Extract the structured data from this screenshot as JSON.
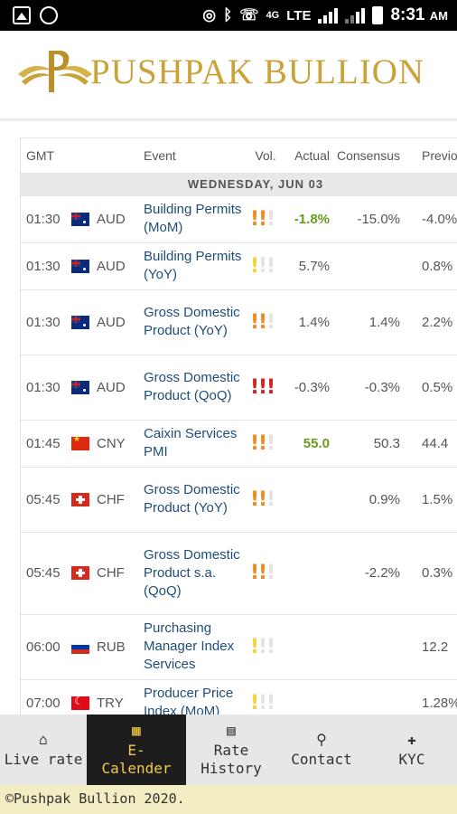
{
  "status": {
    "network": "4G",
    "lte": "LTE",
    "time": "8:31",
    "ampm": "AM"
  },
  "header": {
    "brand": "PUSHPAK BULLION"
  },
  "table": {
    "columns": {
      "gmt": "GMT",
      "event": "Event",
      "vol": "Vol.",
      "actual": "Actual",
      "consensus": "Consensus",
      "previous": "Previous"
    },
    "day": "WEDNESDAY, JUN 03",
    "rows": [
      {
        "time": "01:30",
        "currency": "AUD",
        "event": "Building Permits (MoM)",
        "actual": "-1.8%",
        "consensus": "-15.0%",
        "previous": "-4.0%"
      },
      {
        "time": "01:30",
        "currency": "AUD",
        "event": "Building Permits (YoY)",
        "actual": "5.7%",
        "consensus": "",
        "previous": "0.8%"
      },
      {
        "time": "01:30",
        "currency": "AUD",
        "event": "Gross Domestic Product (YoY)",
        "actual": "1.4%",
        "consensus": "1.4%",
        "previous": "2.2%"
      },
      {
        "time": "01:30",
        "currency": "AUD",
        "event": "Gross Domestic Product (QoQ)",
        "actual": "-0.3%",
        "consensus": "-0.3%",
        "previous": "0.5%"
      },
      {
        "time": "01:45",
        "currency": "CNY",
        "event": "Caixin Services PMI",
        "actual": "55.0",
        "consensus": "50.3",
        "previous": "44.4"
      },
      {
        "time": "05:45",
        "currency": "CHF",
        "event": "Gross Domestic Product (YoY)",
        "actual": "",
        "consensus": "0.9%",
        "previous": "1.5%"
      },
      {
        "time": "05:45",
        "currency": "CHF",
        "event": "Gross Domestic Product s.a. (QoQ)",
        "actual": "",
        "consensus": "-2.2%",
        "previous": "0.3%"
      },
      {
        "time": "06:00",
        "currency": "RUB",
        "event": "Purchasing Manager Index Services",
        "actual": "",
        "consensus": "",
        "previous": "12.2"
      },
      {
        "time": "07:00",
        "currency": "TRY",
        "event": "Producer Price Index (MoM)",
        "actual": "",
        "consensus": "",
        "previous": "1.28%"
      }
    ]
  },
  "nav": {
    "live_rate": "Live rate",
    "ecal_1": "E-",
    "ecal_2": "Calender",
    "rate_1": "Rate",
    "rate_2": "History",
    "contact": "Contact",
    "kyc": "KYC"
  },
  "footer": {
    "text": "©Pushpak Bullion 2020."
  },
  "colors": {
    "gold": "#c9a23a",
    "active_nav": "#1d1d1d",
    "active_text": "#f2c94c",
    "vol_medium": "#f08a1c",
    "vol_low": "#f2d43a",
    "vol_high": "#d42020",
    "positive": "#6a9a1f"
  }
}
